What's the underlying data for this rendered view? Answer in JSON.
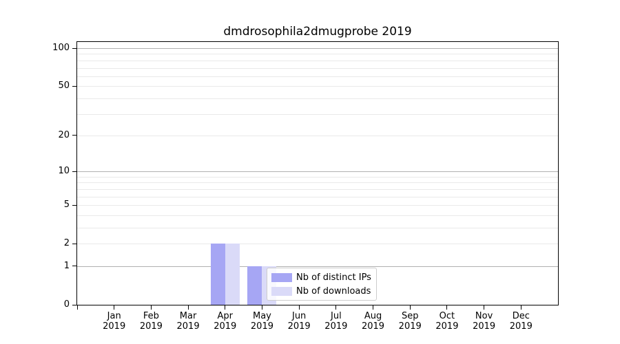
{
  "title": "dmdrosophila2dmugprobe 2019",
  "legend": {
    "items": [
      {
        "label": "Nb of distinct IPs",
        "color": "#a6a6f4"
      },
      {
        "label": "Nb of downloads",
        "color": "#dadaf8"
      }
    ]
  },
  "chart_data": {
    "type": "bar",
    "title": "dmdrosophila2dmugprobe 2019",
    "categories": [
      "Jan 2019",
      "Feb 2019",
      "Mar 2019",
      "Apr 2019",
      "May 2019",
      "Jun 2019",
      "Jul 2019",
      "Aug 2019",
      "Sep 2019",
      "Oct 2019",
      "Nov 2019",
      "Dec 2019"
    ],
    "x_tick_line1": [
      "Jan",
      "Feb",
      "Mar",
      "Apr",
      "May",
      "Jun",
      "Jul",
      "Aug",
      "Sep",
      "Oct",
      "Nov",
      "Dec"
    ],
    "x_tick_line2": "2019",
    "series": [
      {
        "name": "Nb of distinct IPs",
        "color": "#a6a6f4",
        "values": [
          0,
          0,
          0,
          2,
          1,
          0,
          0,
          0,
          0,
          0,
          0,
          0
        ]
      },
      {
        "name": "Nb of downloads",
        "color": "#dadaf8",
        "values": [
          0,
          0,
          0,
          2,
          1,
          0,
          0,
          0,
          0,
          0,
          0,
          0
        ]
      }
    ],
    "xlabel": "",
    "ylabel": "",
    "yscale": "log1p",
    "ylim": [
      0,
      112
    ],
    "yticks": [
      0,
      1,
      2,
      5,
      10,
      20,
      50,
      100
    ],
    "major_grid_values": [
      1,
      10,
      100
    ],
    "minor_grid_values": [
      2,
      3,
      4,
      5,
      6,
      7,
      8,
      9,
      20,
      30,
      40,
      50,
      60,
      70,
      80,
      90
    ],
    "grid": "horizontal, major and minor",
    "legend_position": "inside lower center",
    "colors": {
      "major_grid": "#b0b0b0",
      "minor_grid": "#e9e9e9",
      "spine": "#000000",
      "text": "#000000",
      "background": "#ffffff"
    }
  }
}
